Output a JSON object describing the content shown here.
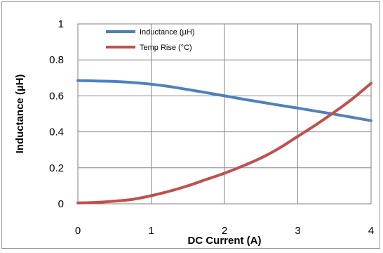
{
  "chart_data": {
    "type": "line",
    "title": "",
    "xlabel": "DC Current (A)",
    "ylabel": "Inductance (µH)",
    "xlim": [
      0,
      4
    ],
    "ylim": [
      0,
      1
    ],
    "x_ticks": [
      0,
      1,
      2,
      3,
      4
    ],
    "x_tick_labels": [
      "0",
      "1",
      "2",
      "3",
      "4"
    ],
    "y_ticks": [
      0,
      0.2,
      0.4,
      0.6,
      0.8,
      1
    ],
    "y_tick_labels": [
      "0",
      "0.2",
      "0.4",
      "0.6",
      "0.8",
      "1"
    ],
    "grid": true,
    "legend_position": "top-left",
    "x": [
      0,
      0.25,
      0.5,
      0.75,
      1,
      1.25,
      1.5,
      1.75,
      2,
      2.25,
      2.5,
      2.75,
      3,
      3.25,
      3.5,
      3.75,
      4
    ],
    "series": [
      {
        "name": "Inductance (µH)",
        "color": "#4f81bd",
        "values": [
          0.685,
          0.683,
          0.68,
          0.674,
          0.665,
          0.652,
          0.635,
          0.618,
          0.6,
          0.582,
          0.565,
          0.548,
          0.532,
          0.515,
          0.498,
          0.48,
          0.462
        ]
      },
      {
        "name": "Temp Rise (°C)",
        "color": "#c0504d",
        "values": [
          0.005,
          0.008,
          0.015,
          0.025,
          0.045,
          0.07,
          0.1,
          0.135,
          0.17,
          0.21,
          0.255,
          0.31,
          0.375,
          0.44,
          0.51,
          0.585,
          0.67
        ]
      }
    ]
  }
}
